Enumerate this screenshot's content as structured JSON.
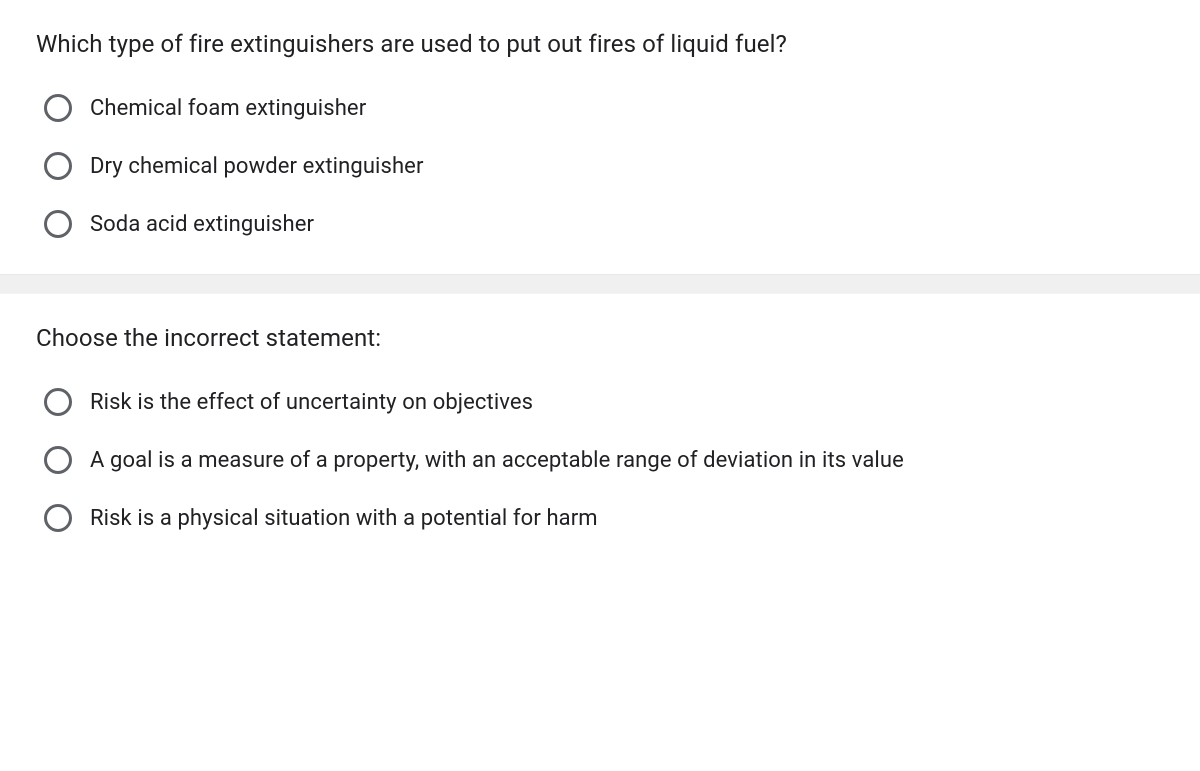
{
  "questions": [
    {
      "prompt": "Which type of fire extinguishers are used to put out fires of liquid fuel?",
      "options": [
        "Chemical foam extinguisher",
        "Dry chemical powder extinguisher",
        "Soda acid extinguisher"
      ]
    },
    {
      "prompt": "Choose the incorrect statement:",
      "options": [
        "Risk is the effect of uncertainty on objectives",
        "A goal is a measure of a property, with an acceptable range of deviation in its value",
        "Risk is a physical situation with a potential for harm"
      ]
    }
  ],
  "colors": {
    "text_primary": "#202124",
    "radio_border": "#5f6368",
    "background": "#ffffff",
    "separator_bg": "#f0f0f0"
  },
  "typography": {
    "question_fontsize": 24,
    "option_fontsize": 22,
    "font_family": "Roboto, Arial, sans-serif"
  }
}
